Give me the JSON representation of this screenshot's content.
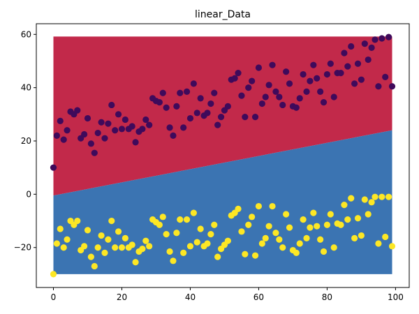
{
  "chart_data": {
    "type": "scatter",
    "title": "linear_Data",
    "xlabel": "",
    "ylabel": "",
    "xlim": [
      -5,
      104
    ],
    "ylim": [
      -35,
      64
    ],
    "xticks": [
      0,
      20,
      40,
      60,
      80,
      100
    ],
    "yticks": [
      -20,
      0,
      20,
      40,
      60
    ],
    "grid": false,
    "decision_regions": {
      "x_range": [
        0,
        99
      ],
      "y_range": [
        -30,
        59.2
      ],
      "boundary": [
        {
          "x": 0,
          "y": -0.5
        },
        {
          "x": 99,
          "y": 24
        }
      ],
      "upper_color": "#c2294a",
      "lower_color": "#3b74b2"
    },
    "series": [
      {
        "color": "#3f0a5b",
        "points": [
          [
            0,
            10
          ],
          [
            1,
            22
          ],
          [
            2,
            27.5
          ],
          [
            3,
            20.5
          ],
          [
            4,
            24
          ],
          [
            5,
            31
          ],
          [
            6,
            30
          ],
          [
            7,
            31.5
          ],
          [
            8,
            21
          ],
          [
            9,
            22.5
          ],
          [
            10,
            28.5
          ],
          [
            11,
            19
          ],
          [
            12,
            15.5
          ],
          [
            13,
            23
          ],
          [
            14,
            27
          ],
          [
            15,
            21
          ],
          [
            16,
            26.5
          ],
          [
            17,
            33.5
          ],
          [
            18,
            24
          ],
          [
            19,
            30
          ],
          [
            20,
            24.5
          ],
          [
            21,
            28
          ],
          [
            22,
            24.5
          ],
          [
            23,
            25.5
          ],
          [
            24,
            19.5
          ],
          [
            25,
            23.5
          ],
          [
            26,
            24.5
          ],
          [
            27,
            28
          ],
          [
            28,
            26
          ],
          [
            29,
            36
          ],
          [
            30,
            35
          ],
          [
            31,
            34.5
          ],
          [
            32,
            38
          ],
          [
            33,
            32.5
          ],
          [
            34,
            25
          ],
          [
            35,
            22
          ],
          [
            36,
            33
          ],
          [
            37,
            38
          ],
          [
            38,
            25
          ],
          [
            39,
            38.5
          ],
          [
            40,
            28.5
          ],
          [
            41,
            41.5
          ],
          [
            42,
            30.5
          ],
          [
            43,
            36
          ],
          [
            44,
            29.5
          ],
          [
            45,
            30.5
          ],
          [
            46,
            34
          ],
          [
            47,
            38
          ],
          [
            48,
            26
          ],
          [
            49,
            29
          ],
          [
            50,
            31.5
          ],
          [
            51,
            33
          ],
          [
            52,
            43
          ],
          [
            53,
            43.5
          ],
          [
            54,
            45.5
          ],
          [
            55,
            37
          ],
          [
            56,
            29
          ],
          [
            57,
            40
          ],
          [
            58,
            42.5
          ],
          [
            59,
            29
          ],
          [
            60,
            47.5
          ],
          [
            61,
            34
          ],
          [
            62,
            36.5
          ],
          [
            63,
            41
          ],
          [
            64,
            48.5
          ],
          [
            65,
            38.5
          ],
          [
            66,
            36.5
          ],
          [
            67,
            33.5
          ],
          [
            68,
            46
          ],
          [
            69,
            41.5
          ],
          [
            70,
            33
          ],
          [
            71,
            32.5
          ],
          [
            72,
            36
          ],
          [
            73,
            45
          ],
          [
            74,
            38.5
          ],
          [
            75,
            42.5
          ],
          [
            76,
            48.5
          ],
          [
            77,
            43.5
          ],
          [
            78,
            38.5
          ],
          [
            79,
            34.5
          ],
          [
            80,
            45
          ],
          [
            81,
            49
          ],
          [
            82,
            36.5
          ],
          [
            83,
            45.5
          ],
          [
            84,
            45.5
          ],
          [
            85,
            53
          ],
          [
            86,
            48
          ],
          [
            87,
            55.5
          ],
          [
            88,
            41.5
          ],
          [
            89,
            49
          ],
          [
            90,
            43
          ],
          [
            91,
            56.5
          ],
          [
            92,
            50.5
          ],
          [
            93,
            55
          ],
          [
            94,
            58
          ],
          [
            95,
            40.5
          ],
          [
            96,
            58.5
          ],
          [
            97,
            44
          ],
          [
            98,
            59
          ],
          [
            99,
            40.5
          ]
        ]
      },
      {
        "color": "#fde725",
        "points": [
          [
            0,
            -30
          ],
          [
            1,
            -18.5
          ],
          [
            2,
            -13
          ],
          [
            3,
            -20
          ],
          [
            4,
            -17
          ],
          [
            5,
            -10
          ],
          [
            6,
            -11.5
          ],
          [
            7,
            -10
          ],
          [
            8,
            -21
          ],
          [
            9,
            -19.5
          ],
          [
            10,
            -13.5
          ],
          [
            11,
            -23.5
          ],
          [
            12,
            -27
          ],
          [
            13,
            -20
          ],
          [
            14,
            -15.5
          ],
          [
            15,
            -22
          ],
          [
            16,
            -17
          ],
          [
            17,
            -10
          ],
          [
            18,
            -20
          ],
          [
            19,
            -14
          ],
          [
            20,
            -20
          ],
          [
            21,
            -16.5
          ],
          [
            22,
            -20
          ],
          [
            23,
            -19
          ],
          [
            24,
            -25.5
          ],
          [
            25,
            -21.5
          ],
          [
            26,
            -20.5
          ],
          [
            27,
            -17.5
          ],
          [
            28,
            -19.5
          ],
          [
            29,
            -9.5
          ],
          [
            30,
            -10.5
          ],
          [
            31,
            -11.5
          ],
          [
            32,
            -8.5
          ],
          [
            33,
            -15
          ],
          [
            34,
            -21.5
          ],
          [
            35,
            -25
          ],
          [
            36,
            -14.5
          ],
          [
            37,
            -9.5
          ],
          [
            38,
            -22
          ],
          [
            39,
            -9.5
          ],
          [
            40,
            -19.5
          ],
          [
            41,
            -7
          ],
          [
            42,
            -18
          ],
          [
            43,
            -13
          ],
          [
            44,
            -19.5
          ],
          [
            45,
            -18.5
          ],
          [
            46,
            -15
          ],
          [
            47,
            -11.5
          ],
          [
            48,
            -23.5
          ],
          [
            49,
            -20.5
          ],
          [
            50,
            -19
          ],
          [
            51,
            -17.5
          ],
          [
            52,
            -8
          ],
          [
            53,
            -7
          ],
          [
            54,
            -5.5
          ],
          [
            55,
            -14
          ],
          [
            56,
            -22.5
          ],
          [
            57,
            -11.5
          ],
          [
            58,
            -8.5
          ],
          [
            59,
            -23
          ],
          [
            60,
            -4.5
          ],
          [
            61,
            -18.5
          ],
          [
            62,
            -16.5
          ],
          [
            63,
            -12
          ],
          [
            64,
            -4.5
          ],
          [
            65,
            -14.5
          ],
          [
            66,
            -17
          ],
          [
            67,
            -20
          ],
          [
            68,
            -7.5
          ],
          [
            69,
            -12.5
          ],
          [
            70,
            -21
          ],
          [
            71,
            -22
          ],
          [
            72,
            -18.5
          ],
          [
            73,
            -9.5
          ],
          [
            74,
            -16.5
          ],
          [
            75,
            -12.5
          ],
          [
            76,
            -7
          ],
          [
            77,
            -12
          ],
          [
            78,
            -17
          ],
          [
            79,
            -21.5
          ],
          [
            80,
            -11.5
          ],
          [
            81,
            -7.5
          ],
          [
            82,
            -20
          ],
          [
            83,
            -11
          ],
          [
            84,
            -11.5
          ],
          [
            85,
            -4
          ],
          [
            86,
            -9.5
          ],
          [
            87,
            -1.5
          ],
          [
            88,
            -16.5
          ],
          [
            89,
            -9
          ],
          [
            90,
            -15.5
          ],
          [
            91,
            -2
          ],
          [
            92,
            -7.5
          ],
          [
            93,
            -3
          ],
          [
            94,
            -1
          ],
          [
            95,
            -18.5
          ],
          [
            96,
            -1
          ],
          [
            97,
            -16
          ],
          [
            98,
            -1
          ],
          [
            99,
            -19.5
          ]
        ]
      }
    ]
  }
}
